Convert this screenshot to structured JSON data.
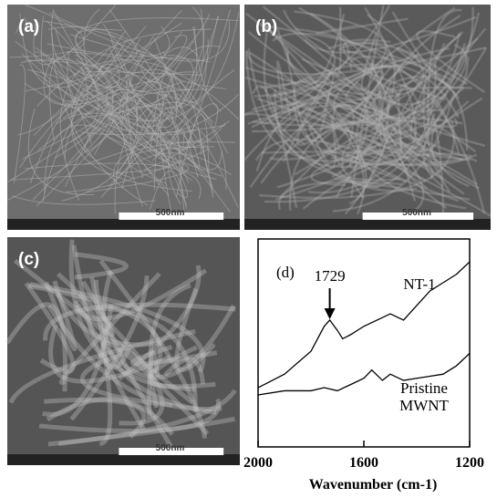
{
  "panels": [
    {
      "label": "(a)",
      "scale_bar": "500nm"
    },
    {
      "label": "(b)",
      "scale_bar": "500nm"
    },
    {
      "label": "(c)",
      "scale_bar": "500nm"
    }
  ],
  "chart_data": {
    "type": "line",
    "panel_label": "(d)",
    "x_label": "Wavenumber (cm-1)",
    "xlim": [
      2000,
      1200
    ],
    "xticks": [
      2000,
      1600,
      1200
    ],
    "ylim": [
      0,
      100
    ],
    "grid": false,
    "annotation": 1729,
    "series": [
      {
        "name": "NT-1",
        "color": "#000000",
        "x": [
          2000,
          1900,
          1800,
          1750,
          1729,
          1700,
          1680,
          1650,
          1600,
          1550,
          1500,
          1450,
          1400,
          1350,
          1300,
          1250,
          1200
        ],
        "values": [
          28.5,
          35,
          46,
          58,
          61,
          56,
          52,
          54,
          58,
          61,
          64,
          61,
          68,
          75,
          79,
          83,
          89
        ]
      },
      {
        "name": "Pristine MWNT",
        "color": "#000000",
        "x": [
          2000,
          1900,
          1800,
          1750,
          1700,
          1650,
          1600,
          1570,
          1530,
          1500,
          1450,
          1400,
          1350,
          1300,
          1250,
          1200
        ],
        "values": [
          25,
          27,
          27,
          28.5,
          27,
          30,
          33,
          37,
          32,
          35,
          32,
          33,
          34,
          35,
          39,
          45
        ]
      }
    ]
  }
}
